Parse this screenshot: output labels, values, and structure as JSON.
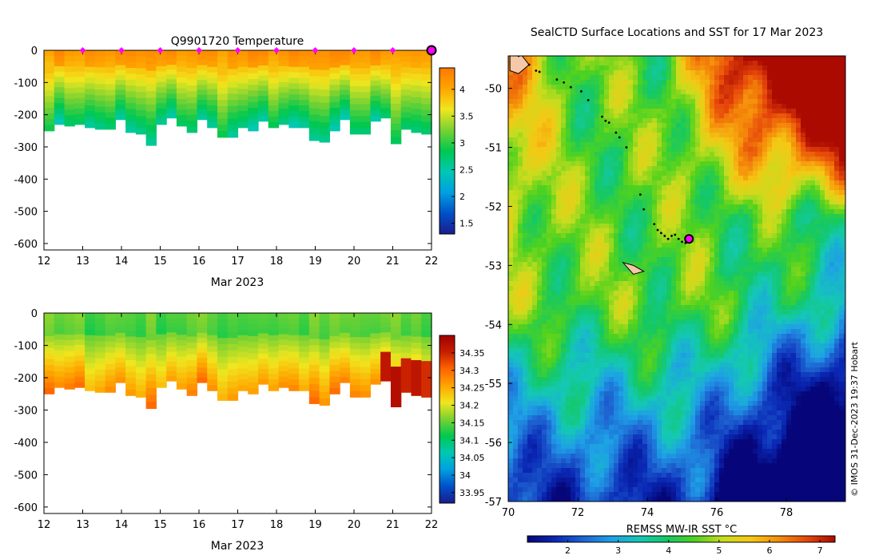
{
  "colors": {
    "temp_scale": [
      "#1c1c8c",
      "#0050c8",
      "#00a0e0",
      "#00c8b4",
      "#00c850",
      "#78d232",
      "#f0e61e",
      "#ffa500",
      "#ff7800"
    ],
    "sal_scale": [
      "#1c1c8c",
      "#0050c8",
      "#00a0e0",
      "#00c8b4",
      "#00c850",
      "#78d232",
      "#f0e61e",
      "#ffa500",
      "#ff6400",
      "#c81e00",
      "#a00000"
    ],
    "sst_scale": [
      "#06067a",
      "#0a28b4",
      "#1e64d2",
      "#1ea0e6",
      "#14c8b4",
      "#14c864",
      "#50d21e",
      "#c8dc1e",
      "#f5c814",
      "#f58c0a",
      "#e6460a",
      "#aa0a00"
    ],
    "marker": "#ff00ff",
    "land": "#f4c8a8",
    "track": "#000000"
  },
  "chart_data": [
    {
      "type": "heatmap",
      "name": "temperature-section",
      "title": "Q9901720  Temperature",
      "xlabel": "Mar 2023",
      "ylabel": "",
      "x_ticks": [
        "12",
        "13",
        "14",
        "15",
        "16",
        "17",
        "18",
        "19",
        "20",
        "21",
        "22"
      ],
      "y_ticks": [
        "0",
        "-100",
        "-200",
        "-300",
        "-400",
        "-500",
        "-600"
      ],
      "xlim": [
        12,
        22
      ],
      "ylim": [
        -620,
        0
      ],
      "colorbar": {
        "min": 1.3,
        "max": 4.4,
        "ticks": [
          "1.5",
          "2",
          "2.5",
          "3",
          "3.5",
          "4"
        ],
        "tick_values": [
          1.5,
          2,
          2.5,
          3,
          3.5,
          4
        ]
      },
      "profile_depths": [
        250,
        230,
        235,
        230,
        240,
        245,
        245,
        215,
        255,
        260,
        295,
        230,
        210,
        235,
        255,
        215,
        240,
        270,
        270,
        240,
        250,
        220,
        240,
        230,
        240,
        240,
        280,
        285,
        250,
        215,
        260,
        260,
        220,
        210,
        290,
        245,
        255,
        260
      ],
      "surface_markers": [
        13,
        14,
        15,
        16,
        17,
        18,
        19,
        20,
        21
      ],
      "last_marker": 22
    },
    {
      "type": "heatmap",
      "name": "salinity-section",
      "title": "",
      "xlabel": "Mar 2023",
      "ylabel": "",
      "x_ticks": [
        "12",
        "13",
        "14",
        "15",
        "16",
        "17",
        "18",
        "19",
        "20",
        "21",
        "22"
      ],
      "y_ticks": [
        "0",
        "-100",
        "-200",
        "-300",
        "-400",
        "-500",
        "-600"
      ],
      "xlim": [
        12,
        22
      ],
      "ylim": [
        -620,
        0
      ],
      "colorbar": {
        "min": 33.92,
        "max": 34.4,
        "ticks": [
          "33.95",
          "34",
          "34.05",
          "34.1",
          "34.15",
          "34.2",
          "34.25",
          "34.3",
          "34.35"
        ],
        "tick_values": [
          33.95,
          34,
          34.05,
          34.1,
          34.15,
          34.2,
          34.25,
          34.3,
          34.35
        ]
      },
      "profile_depths": [
        250,
        230,
        235,
        230,
        240,
        245,
        245,
        215,
        255,
        260,
        295,
        230,
        210,
        235,
        255,
        215,
        240,
        270,
        270,
        240,
        250,
        220,
        240,
        230,
        240,
        240,
        280,
        285,
        250,
        215,
        260,
        260,
        220,
        210,
        290,
        245,
        255,
        260
      ]
    },
    {
      "type": "map",
      "name": "sst-map",
      "title": "SealCTD Surface Locations and SST for 17 Mar 2023",
      "xlabel": "",
      "ylabel": "",
      "x_ticks": [
        "70",
        "72",
        "74",
        "76",
        "78"
      ],
      "x_tick_values": [
        70,
        72,
        74,
        76,
        78
      ],
      "y_ticks": [
        "-50",
        "-51",
        "-52",
        "-53",
        "-54",
        "-55",
        "-56",
        "-57"
      ],
      "y_tick_values": [
        -50,
        -51,
        -52,
        -53,
        -54,
        -55,
        -56,
        -57
      ],
      "xlim": [
        70,
        79.7
      ],
      "ylim": [
        -57,
        -49.45
      ],
      "colorbar": {
        "label": "REMSS MW-IR SST °C",
        "min": 1.2,
        "max": 7.3,
        "ticks": [
          "2",
          "3",
          "4",
          "5",
          "6",
          "7"
        ],
        "tick_values": [
          2,
          3,
          4,
          5,
          6,
          7
        ]
      },
      "track_lon": [
        70.3,
        70.6,
        70.8,
        70.9,
        71.4,
        71.6,
        71.8,
        72.1,
        72.3,
        72.7,
        72.8,
        72.9,
        73.1,
        73.2,
        73.4,
        73.8,
        73.9,
        74.2,
        74.3,
        74.4,
        74.5,
        74.6,
        74.7,
        74.8,
        74.9,
        75.0,
        75.1,
        75.2
      ],
      "track_lat": [
        -49.45,
        -49.6,
        -49.7,
        -49.72,
        -49.85,
        -49.9,
        -49.98,
        -50.05,
        -50.2,
        -50.48,
        -50.55,
        -50.58,
        -50.75,
        -50.83,
        -51.0,
        -51.8,
        -52.05,
        -52.3,
        -52.4,
        -52.45,
        -52.5,
        -52.55,
        -52.5,
        -52.48,
        -52.55,
        -52.6,
        -52.62,
        -52.6
      ],
      "current_lon": 75.2,
      "current_lat": -52.55,
      "copyright": "© IMOS 31-Dec-2023 19:37 Hobart"
    }
  ]
}
